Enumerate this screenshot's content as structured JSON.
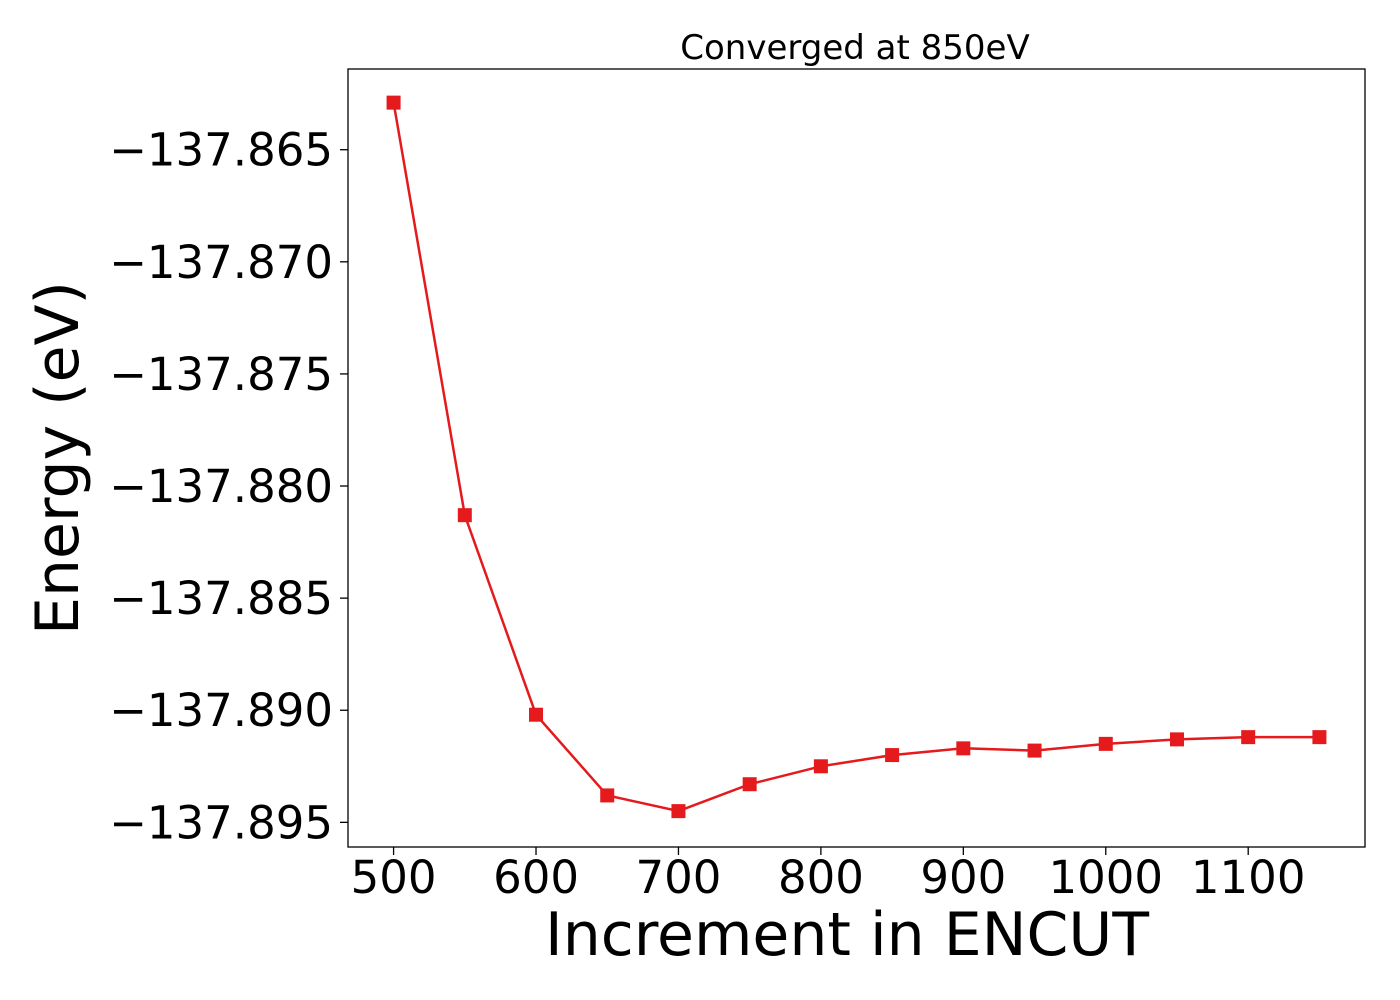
{
  "chart_data": {
    "type": "line",
    "title": "Converged at 850eV",
    "xlabel": "Increment in ENCUT",
    "ylabel": "Energy (eV)",
    "x": [
      500,
      550,
      600,
      650,
      700,
      750,
      800,
      850,
      900,
      950,
      1000,
      1050,
      1100,
      1150
    ],
    "series": [
      {
        "values": [
          -137.8629,
          -137.8813,
          -137.8902,
          -137.8938,
          -137.8945,
          -137.8933,
          -137.8925,
          -137.892,
          -137.8917,
          -137.8918,
          -137.8915,
          -137.8913,
          -137.8912,
          -137.8912
        ],
        "color": "#e41a1c",
        "marker": "square"
      }
    ],
    "xticks": [
      500,
      600,
      700,
      800,
      900,
      1000,
      1100
    ],
    "xtick_labels": [
      "500",
      "600",
      "700",
      "800",
      "900",
      "1000",
      "1100"
    ],
    "yticks": [
      -137.865,
      -137.87,
      -137.875,
      -137.88,
      -137.885,
      -137.89,
      -137.895
    ],
    "ytick_labels": [
      "−137.865",
      "−137.870",
      "−137.875",
      "−137.880",
      "−137.885",
      "−137.890",
      "−137.895"
    ],
    "xlim": [
      468,
      1182
    ],
    "ylim": [
      -137.8961,
      -137.8614
    ],
    "grid": false,
    "legend": "none"
  }
}
